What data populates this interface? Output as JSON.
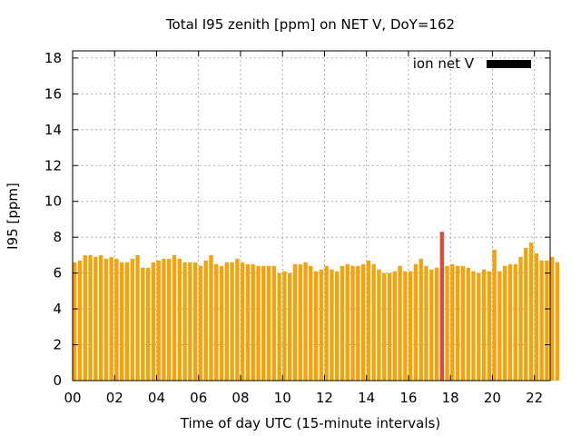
{
  "chart_data": {
    "type": "bar",
    "title": "Total I95 zenith [ppm] on NET V, DoY=162",
    "xlabel": "Time of day UTC (15-minute intervals)",
    "ylabel": "I95 [ppm]",
    "xlim": [
      0,
      22.75
    ],
    "ylim": [
      0,
      18.4
    ],
    "xticks": [
      0,
      2,
      4,
      6,
      8,
      10,
      12,
      14,
      16,
      18,
      20,
      22
    ],
    "xtick_labels": [
      "00",
      "02",
      "04",
      "06",
      "08",
      "10",
      "12",
      "14",
      "16",
      "18",
      "20",
      "22"
    ],
    "yticks": [
      0,
      2,
      4,
      6,
      8,
      10,
      12,
      14,
      16,
      18
    ],
    "ytick_labels": [
      "0",
      "2",
      "4",
      "6",
      "8",
      "10",
      "12",
      "14",
      "16",
      "18"
    ],
    "grid": true,
    "legend": {
      "position": "top-right",
      "label": "ion net V",
      "color": "#000000"
    },
    "bar_width_hours": 0.19,
    "bar_color": "#f5a30a",
    "highlight_color": "#e04a3a",
    "series": [
      {
        "x_start": 0,
        "x_step": 0.25,
        "values": [
          6.6,
          6.7,
          7.0,
          7.0,
          6.9,
          7.0,
          6.8,
          6.9,
          6.8,
          6.6,
          6.6,
          6.8,
          7.0,
          6.3,
          6.3,
          6.6,
          6.7,
          6.8,
          6.8,
          7.0,
          6.8,
          6.6,
          6.6,
          6.6,
          6.4,
          6.7,
          7.0,
          6.5,
          6.4,
          6.6,
          6.6,
          6.8,
          6.6,
          6.5,
          6.5,
          6.4,
          6.4,
          6.4,
          6.4,
          6.0,
          6.1,
          6.0,
          6.5,
          6.5,
          6.6,
          6.4,
          6.1,
          6.2,
          6.4,
          6.2,
          6.1,
          6.4,
          6.5,
          6.4,
          6.4,
          6.5,
          6.7,
          6.5,
          6.2,
          6.0,
          6.0,
          6.1,
          6.4,
          6.1,
          6.1,
          6.5,
          6.8,
          6.4,
          6.2,
          6.3,
          8.3,
          6.4,
          6.5,
          6.4,
          6.4,
          6.3,
          6.1,
          6.0,
          6.2,
          6.1,
          7.3,
          6.1,
          6.4,
          6.5,
          6.5,
          6.9,
          7.4,
          7.7,
          7.1,
          6.7,
          6.7,
          6.9,
          6.6
        ],
        "highlight_index": 70
      }
    ]
  }
}
